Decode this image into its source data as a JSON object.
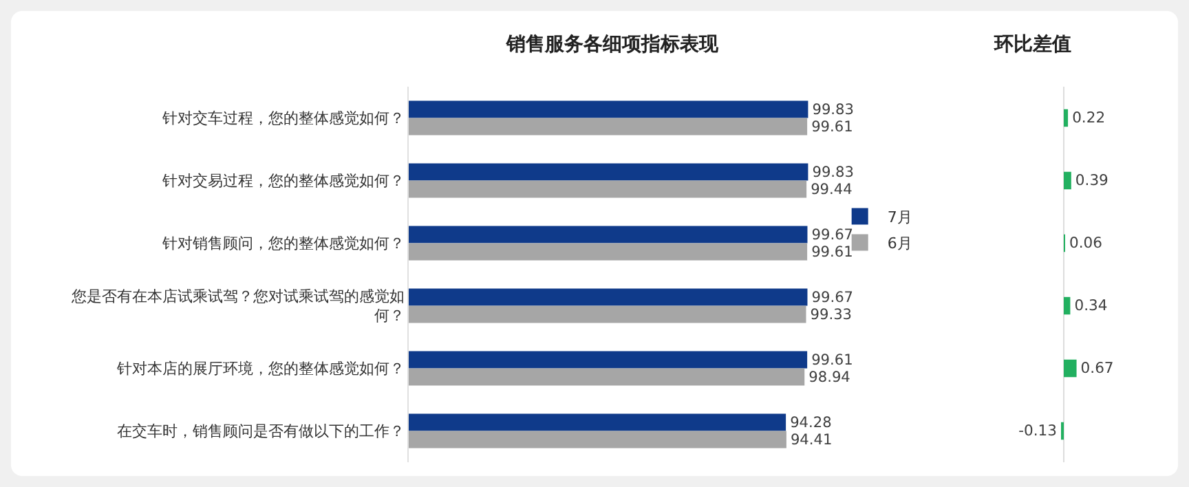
{
  "chart_data": [
    {
      "type": "bar",
      "title": "销售服务各细项指标表现",
      "orientation": "horizontal",
      "categories": [
        "针对交车过程，您的整体感觉如何？",
        "针对交易过程，您的整体感觉如何？",
        "针对销售顾问，您的整体感觉如何？",
        "您是否有在本店试乘试驾？您对试乘试驾的感觉如何？",
        "针对本店的展厅环境，您的整体感觉如何？",
        "在交车时，销售顾问是否有做以下的工作？"
      ],
      "series": [
        {
          "name": "7月",
          "color": "#0f3a8a",
          "values": [
            99.83,
            99.83,
            99.67,
            99.67,
            99.61,
            94.28
          ]
        },
        {
          "name": "6月",
          "color": "#a6a6a6",
          "values": [
            99.61,
            99.44,
            99.61,
            99.33,
            98.94,
            94.41
          ]
        }
      ],
      "data_labels": true,
      "legend": "right",
      "tick_labels": "y"
    },
    {
      "type": "bar",
      "title": "环比差值",
      "orientation": "horizontal",
      "categories": [
        null,
        null,
        null,
        null,
        null,
        null
      ],
      "values": [
        0.22,
        0.39,
        0.06,
        0.34,
        0.67,
        -0.13
      ],
      "color": "#22b060",
      "data_labels": true,
      "tick_labels": false
    }
  ]
}
